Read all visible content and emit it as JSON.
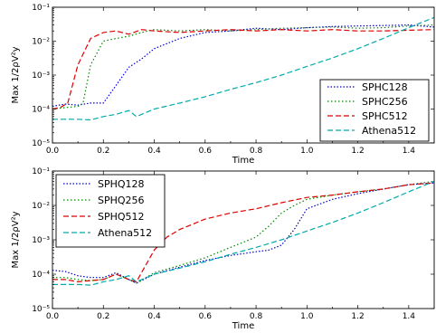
{
  "chart_data": [
    {
      "type": "line",
      "xlabel": "Time",
      "ylabel": "Max 1/2ρV²y",
      "xlim": [
        0,
        1.5
      ],
      "ylim": [
        1e-05,
        0.1
      ],
      "yscale": "log",
      "xticks": [
        "0.0",
        "0.2",
        "0.4",
        "0.6",
        "0.8",
        "1.0",
        "1.2",
        "1.4"
      ],
      "yticks": [
        "10⁻⁵",
        "10⁻⁴",
        "10⁻³",
        "10⁻²",
        "10⁻¹"
      ],
      "legend_position": "lower-right",
      "series": [
        {
          "name": "SPHC128",
          "color": "#0000cc",
          "style": "dotted",
          "x": [
            0,
            0.05,
            0.1,
            0.15,
            0.2,
            0.25,
            0.3,
            0.35,
            0.4,
            0.5,
            0.6,
            0.7,
            0.8,
            0.9,
            1.0,
            1.1,
            1.2,
            1.3,
            1.4,
            1.5
          ],
          "y": [
            0.00012,
            0.00014,
            0.00013,
            0.00015,
            0.00015,
            0.0005,
            0.0017,
            0.003,
            0.006,
            0.012,
            0.018,
            0.02,
            0.024,
            0.022,
            0.025,
            0.027,
            0.028,
            0.029,
            0.03,
            0.026
          ]
        },
        {
          "name": "SPHC256",
          "color": "#008800",
          "style": "dashdot",
          "x": [
            0,
            0.05,
            0.1,
            0.12,
            0.15,
            0.2,
            0.25,
            0.3,
            0.35,
            0.4,
            0.5,
            0.6,
            0.7,
            0.8,
            0.9,
            1.0,
            1.1,
            1.2,
            1.3,
            1.4,
            1.5
          ],
          "y": [
            0.0001,
            0.00011,
            0.00012,
            0.00015,
            0.002,
            0.01,
            0.012,
            0.014,
            0.018,
            0.022,
            0.02,
            0.022,
            0.02,
            0.022,
            0.024,
            0.025,
            0.026,
            0.024,
            0.025,
            0.028,
            0.03
          ]
        },
        {
          "name": "SPHC512",
          "color": "#dd0000",
          "style": "dashed",
          "x": [
            0,
            0.03,
            0.06,
            0.1,
            0.15,
            0.2,
            0.25,
            0.3,
            0.35,
            0.4,
            0.5,
            0.6,
            0.7,
            0.8,
            0.9,
            1.0,
            1.1,
            1.2,
            1.3,
            1.4,
            1.5
          ],
          "y": [
            0.0001,
            0.00011,
            0.00015,
            0.002,
            0.012,
            0.018,
            0.02,
            0.016,
            0.022,
            0.02,
            0.018,
            0.02,
            0.022,
            0.02,
            0.022,
            0.02,
            0.022,
            0.02,
            0.02,
            0.021,
            0.022
          ]
        },
        {
          "name": "Athena512",
          "color": "#00aaaa",
          "style": "dashed",
          "x": [
            0,
            0.1,
            0.15,
            0.2,
            0.25,
            0.3,
            0.33,
            0.4,
            0.5,
            0.6,
            0.7,
            0.8,
            0.9,
            1.0,
            1.1,
            1.2,
            1.3,
            1.4,
            1.5
          ],
          "y": [
            5e-05,
            5e-05,
            4.8e-05,
            6e-05,
            7e-05,
            9e-05,
            6e-05,
            0.0001,
            0.00015,
            0.00023,
            0.00038,
            0.0006,
            0.001,
            0.0018,
            0.0032,
            0.006,
            0.012,
            0.025,
            0.05
          ]
        }
      ]
    },
    {
      "type": "line",
      "xlabel": "Time",
      "ylabel": "Max 1/2ρV²y",
      "xlim": [
        0,
        1.5
      ],
      "ylim": [
        1e-05,
        0.1
      ],
      "yscale": "log",
      "xticks": [
        "0.0",
        "0.2",
        "0.4",
        "0.6",
        "0.8",
        "1.0",
        "1.2",
        "1.4"
      ],
      "yticks": [
        "10⁻⁵",
        "10⁻⁴",
        "10⁻³",
        "10⁻²",
        "10⁻¹"
      ],
      "legend_position": "upper-left",
      "series": [
        {
          "name": "SPHQ128",
          "color": "#0000cc",
          "style": "dotted",
          "x": [
            0,
            0.05,
            0.1,
            0.15,
            0.2,
            0.25,
            0.3,
            0.33,
            0.4,
            0.5,
            0.6,
            0.7,
            0.8,
            0.85,
            0.9,
            0.95,
            1.0,
            1.1,
            1.2,
            1.3,
            1.4,
            1.5
          ],
          "y": [
            0.00013,
            0.00012,
            9e-05,
            8e-05,
            8e-05,
            0.00011,
            7e-05,
            5.5e-05,
            0.0001,
            0.00016,
            0.00025,
            0.00035,
            0.00045,
            0.0005,
            0.0007,
            0.002,
            0.008,
            0.015,
            0.022,
            0.03,
            0.04,
            0.045
          ]
        },
        {
          "name": "SPHQ256",
          "color": "#008800",
          "style": "dashdot",
          "x": [
            0,
            0.05,
            0.1,
            0.15,
            0.2,
            0.25,
            0.3,
            0.33,
            0.4,
            0.5,
            0.6,
            0.7,
            0.8,
            0.85,
            0.9,
            0.95,
            1.0,
            1.1,
            1.2,
            1.3,
            1.4,
            1.5
          ],
          "y": [
            8e-05,
            8e-05,
            7e-05,
            6.5e-05,
            7e-05,
            0.0001,
            7e-05,
            5.5e-05,
            0.00011,
            0.00018,
            0.0003,
            0.0006,
            0.0012,
            0.0025,
            0.006,
            0.01,
            0.015,
            0.02,
            0.025,
            0.03,
            0.04,
            0.05
          ]
        },
        {
          "name": "SPHQ512",
          "color": "#dd0000",
          "style": "dashed",
          "x": [
            0,
            0.05,
            0.1,
            0.15,
            0.2,
            0.25,
            0.3,
            0.33,
            0.4,
            0.45,
            0.5,
            0.6,
            0.7,
            0.8,
            0.9,
            1.0,
            1.1,
            1.2,
            1.3,
            1.4,
            1.5
          ],
          "y": [
            7e-05,
            7e-05,
            6e-05,
            6.5e-05,
            7e-05,
            0.0001,
            7e-05,
            6e-05,
            0.0005,
            0.0012,
            0.002,
            0.004,
            0.006,
            0.008,
            0.012,
            0.017,
            0.02,
            0.025,
            0.03,
            0.04,
            0.045
          ]
        },
        {
          "name": "Athena512",
          "color": "#00aaaa",
          "style": "dashed",
          "x": [
            0,
            0.1,
            0.15,
            0.2,
            0.25,
            0.3,
            0.33,
            0.4,
            0.5,
            0.6,
            0.7,
            0.8,
            0.9,
            1.0,
            1.1,
            1.2,
            1.3,
            1.4,
            1.5
          ],
          "y": [
            5e-05,
            5e-05,
            4.8e-05,
            6e-05,
            7e-05,
            9e-05,
            6e-05,
            0.0001,
            0.00015,
            0.00023,
            0.00038,
            0.0006,
            0.001,
            0.0018,
            0.0032,
            0.006,
            0.012,
            0.025,
            0.05
          ]
        }
      ]
    }
  ]
}
